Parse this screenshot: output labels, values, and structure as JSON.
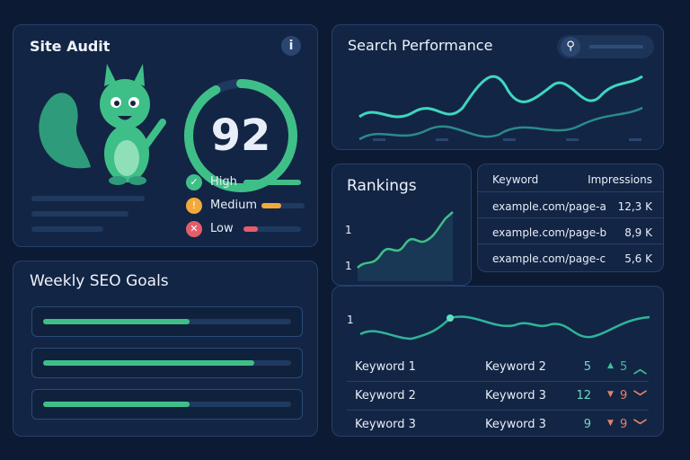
{
  "site_audit": {
    "title": "Site Audit",
    "info_icon": "i",
    "score": "92",
    "score_fraction": 0.92,
    "legend": [
      {
        "label": "High",
        "icon": "check-icon",
        "color": "#3fbf88",
        "fill": 1.0
      },
      {
        "label": "Medium",
        "icon": "warning-icon",
        "color": "#f2a93b",
        "fill": 0.45
      },
      {
        "label": "Low",
        "icon": "x-icon",
        "color": "#e35d6a",
        "fill": 0.25
      }
    ]
  },
  "search_performance": {
    "title": "Search Performance",
    "search_icon": "search-icon"
  },
  "rankings": {
    "title": "Rankings",
    "y_labels": [
      "1",
      "1"
    ]
  },
  "impressions_table": {
    "headers": [
      "Keyword",
      "Impressions"
    ],
    "rows": [
      [
        "example.com/page-a",
        "12,3 K"
      ],
      [
        "example.com/page-b",
        "8,9 K"
      ],
      [
        "example.com/page-c",
        "5,6 K"
      ]
    ]
  },
  "trend": {
    "y_label": "1",
    "rows": [
      {
        "kw1": "Keyword 1",
        "kw2": "Keyword 2",
        "pos": "5",
        "dir": "up",
        "change": "5",
        "color": "#3fbf9a"
      },
      {
        "kw1": "Keyword 2",
        "kw2": "Keyword 3",
        "pos": "12",
        "dir": "down",
        "change": "9",
        "color": "#e8806a"
      },
      {
        "kw1": "Keyword 3",
        "kw2": "Keyword 3",
        "pos": "9",
        "dir": "down",
        "change": "9",
        "color": "#e8806a"
      }
    ]
  },
  "weekly_goals": {
    "title": "Weekly SEO Goals",
    "goals": [
      0.59,
      0.85,
      0.59
    ]
  }
}
